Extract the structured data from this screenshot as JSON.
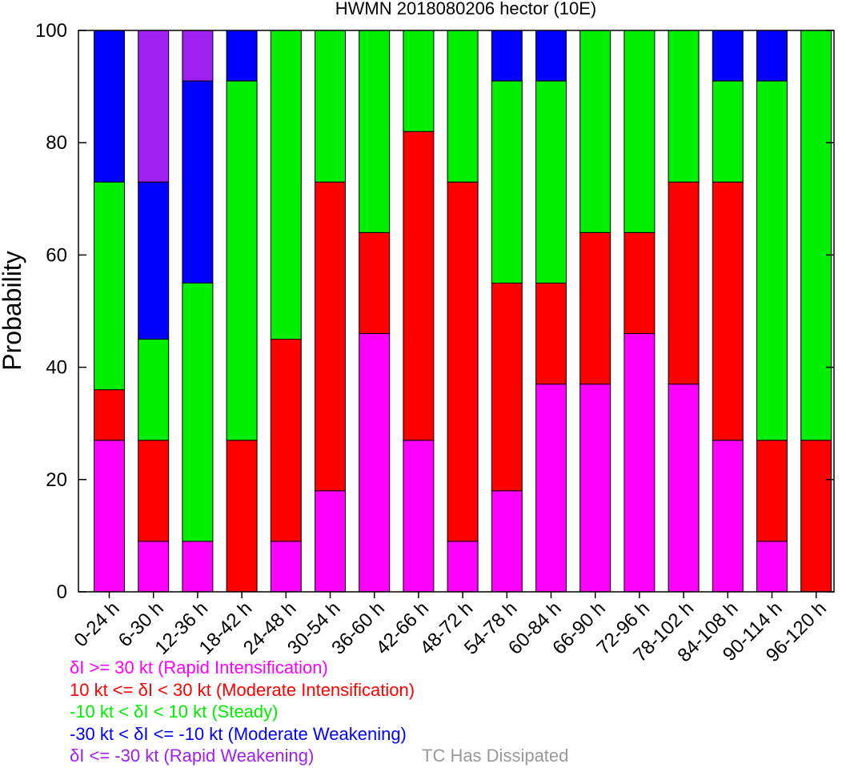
{
  "chart_data": {
    "type": "bar",
    "stacked": true,
    "title": "HWMN 2018080206 hector (10E)",
    "xlabel": "",
    "ylabel": "Probability",
    "ylim": [
      0,
      100
    ],
    "yticks": [
      0,
      20,
      40,
      60,
      80,
      100
    ],
    "grid": false,
    "categories": [
      "0-24 h",
      "6-30 h",
      "12-36 h",
      "18-42 h",
      "24-48 h",
      "30-54 h",
      "36-60 h",
      "42-66 h",
      "48-72 h",
      "54-78 h",
      "60-84 h",
      "66-90 h",
      "72-96 h",
      "78-102 h",
      "84-108 h",
      "90-114 h",
      "96-120 h"
    ],
    "series": [
      {
        "name": "δI >= 30 kt (Rapid Intensification)",
        "color": "#ff00ff",
        "values": [
          27,
          9,
          9,
          0,
          9,
          18,
          46,
          27,
          9,
          18,
          37,
          37,
          46,
          37,
          27,
          9,
          0
        ]
      },
      {
        "name": "10 kt <= δI < 30 kt (Moderate Intensification)",
        "color": "#ff0000",
        "values": [
          9,
          18,
          0,
          27,
          36,
          55,
          18,
          55,
          64,
          37,
          18,
          27,
          18,
          36,
          46,
          18,
          27
        ]
      },
      {
        "name": "-10 kt < δI < 10 kt (Steady)",
        "color": "#00ee00",
        "values": [
          37,
          18,
          46,
          64,
          55,
          27,
          36,
          18,
          27,
          36,
          36,
          36,
          36,
          27,
          18,
          64,
          73
        ]
      },
      {
        "name": "-30 kt < δI <= -10 kt (Moderate Weakening)",
        "color": "#0000ff",
        "values": [
          27,
          28,
          36,
          9,
          0,
          0,
          0,
          0,
          0,
          9,
          9,
          0,
          0,
          0,
          9,
          9,
          0
        ]
      },
      {
        "name": "δI <= -30 kt (Rapid Weakening)",
        "color": "#a020f0",
        "values": [
          0,
          27,
          9,
          0,
          0,
          0,
          0,
          0,
          0,
          0,
          0,
          0,
          0,
          0,
          0,
          0,
          0
        ]
      }
    ],
    "extra_legend": {
      "text": "TC Has Dissipated",
      "color": "#999999"
    }
  }
}
